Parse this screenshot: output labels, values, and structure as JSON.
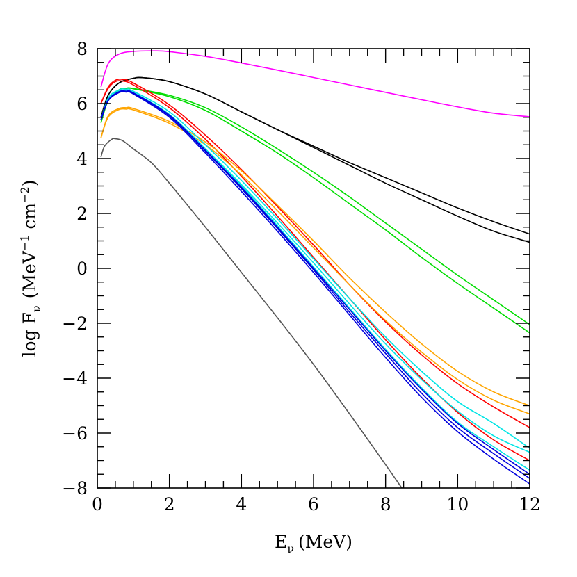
{
  "chart_data": {
    "type": "line",
    "xlabel": "E_ν (MeV)",
    "ylabel": "log F_ν (MeV⁻¹ cm⁻²)",
    "xlabel_parts": {
      "symbol": "E",
      "sub": "ν",
      "unit": "(MeV)"
    },
    "ylabel_parts": {
      "prefix": "log F",
      "sub": "ν",
      "unit_open": "(MeV",
      "sup1": "−1",
      "unit_mid": "cm",
      "sup2": "−2",
      "unit_close": ")"
    },
    "xlim": [
      0,
      12
    ],
    "ylim": [
      -8,
      8
    ],
    "x_ticks": [
      0,
      2,
      4,
      6,
      8,
      10,
      12
    ],
    "y_ticks": [
      8,
      6,
      4,
      2,
      0,
      -2,
      -4,
      -6,
      -8
    ],
    "x_tick_labels": [
      "0",
      "2",
      "4",
      "6",
      "8",
      "10",
      "12"
    ],
    "y_tick_labels": [
      "8",
      "6",
      "4",
      "2",
      "0",
      "−2",
      "−4",
      "−6",
      "−8"
    ],
    "grid": false,
    "legend": "none",
    "series": [
      {
        "color": "#ff00ff",
        "points": [
          [
            0.1,
            6.6
          ],
          [
            0.3,
            7.45
          ],
          [
            0.6,
            7.8
          ],
          [
            1.0,
            7.9
          ],
          [
            1.6,
            7.92
          ],
          [
            2,
            7.89
          ],
          [
            3,
            7.72
          ],
          [
            4,
            7.48
          ],
          [
            5,
            7.22
          ],
          [
            6,
            6.95
          ],
          [
            7,
            6.68
          ],
          [
            8,
            6.41
          ],
          [
            9,
            6.14
          ],
          [
            10,
            5.88
          ],
          [
            11,
            5.65
          ],
          [
            12,
            5.52
          ]
        ]
      },
      {
        "color": "#000000",
        "points": [
          [
            0.1,
            5.5
          ],
          [
            0.3,
            6.3
          ],
          [
            0.6,
            6.75
          ],
          [
            1.0,
            6.92
          ],
          [
            1.3,
            6.94
          ],
          [
            2,
            6.8
          ],
          [
            3,
            6.35
          ],
          [
            4,
            5.7
          ],
          [
            5,
            5.05
          ],
          [
            6,
            4.45
          ],
          [
            7,
            3.85
          ],
          [
            8,
            3.3
          ],
          [
            9,
            2.75
          ],
          [
            10,
            2.2
          ],
          [
            11,
            1.7
          ],
          [
            12,
            1.25
          ]
        ]
      },
      {
        "color": "#000000",
        "points": [
          [
            0.1,
            5.5
          ],
          [
            0.3,
            6.3
          ],
          [
            0.6,
            6.75
          ],
          [
            1.0,
            6.92
          ],
          [
            1.3,
            6.94
          ],
          [
            2,
            6.8
          ],
          [
            3,
            6.35
          ],
          [
            4,
            5.7
          ],
          [
            5,
            5.05
          ],
          [
            6,
            4.4
          ],
          [
            7,
            3.75
          ],
          [
            8,
            3.1
          ],
          [
            9,
            2.5
          ],
          [
            10,
            1.9
          ],
          [
            11,
            1.35
          ],
          [
            12,
            0.95
          ]
        ]
      },
      {
        "color": "#00dd00",
        "points": [
          [
            0.1,
            5.3
          ],
          [
            0.3,
            6.1
          ],
          [
            0.6,
            6.5
          ],
          [
            0.8,
            6.56
          ],
          [
            1,
            6.55
          ],
          [
            2,
            6.3
          ],
          [
            3,
            5.85
          ],
          [
            4,
            5.15
          ],
          [
            5,
            4.35
          ],
          [
            6,
            3.5
          ],
          [
            7,
            2.6
          ],
          [
            8,
            1.65
          ],
          [
            9,
            0.7
          ],
          [
            10,
            -0.25
          ],
          [
            11,
            -1.15
          ],
          [
            12,
            -2.05
          ]
        ]
      },
      {
        "color": "#00dd00",
        "points": [
          [
            0.1,
            5.3
          ],
          [
            0.3,
            6.1
          ],
          [
            0.6,
            6.5
          ],
          [
            0.8,
            6.55
          ],
          [
            1,
            6.54
          ],
          [
            2,
            6.25
          ],
          [
            3,
            5.75
          ],
          [
            4,
            5.0
          ],
          [
            5,
            4.2
          ],
          [
            6,
            3.3
          ],
          [
            7,
            2.35
          ],
          [
            8,
            1.4
          ],
          [
            9,
            0.4
          ],
          [
            10,
            -0.55
          ],
          [
            11,
            -1.45
          ],
          [
            12,
            -2.35
          ]
        ]
      },
      {
        "color": "#ff0000",
        "points": [
          [
            0.1,
            6.0
          ],
          [
            0.3,
            6.6
          ],
          [
            0.5,
            6.85
          ],
          [
            0.7,
            6.88
          ],
          [
            1,
            6.75
          ],
          [
            2,
            5.95
          ],
          [
            3,
            4.85
          ],
          [
            4,
            3.6
          ],
          [
            5,
            2.25
          ],
          [
            6,
            0.85
          ],
          [
            7,
            -0.6
          ],
          [
            8,
            -1.95
          ],
          [
            9,
            -3.15
          ],
          [
            10,
            -4.2
          ],
          [
            11,
            -5.05
          ],
          [
            12,
            -5.8
          ]
        ]
      },
      {
        "color": "#ff0000",
        "points": [
          [
            0.1,
            6.0
          ],
          [
            0.3,
            6.55
          ],
          [
            0.5,
            6.8
          ],
          [
            0.7,
            6.82
          ],
          [
            1,
            6.68
          ],
          [
            2,
            5.85
          ],
          [
            3,
            4.7
          ],
          [
            4,
            3.35
          ],
          [
            5,
            1.9
          ],
          [
            6,
            0.4
          ],
          [
            7,
            -1.1
          ],
          [
            8,
            -2.6
          ],
          [
            9,
            -4.0
          ],
          [
            10,
            -5.25
          ],
          [
            11,
            -6.25
          ],
          [
            12,
            -7.0
          ]
        ]
      },
      {
        "color": "#ffa500",
        "points": [
          [
            0.1,
            4.75
          ],
          [
            0.3,
            5.55
          ],
          [
            0.6,
            5.82
          ],
          [
            0.8,
            5.85
          ],
          [
            1,
            5.82
          ],
          [
            2,
            5.35
          ],
          [
            3,
            4.6
          ],
          [
            4,
            3.55
          ],
          [
            5,
            2.3
          ],
          [
            6,
            1.0
          ],
          [
            7,
            -0.35
          ],
          [
            8,
            -1.6
          ],
          [
            9,
            -2.75
          ],
          [
            10,
            -3.75
          ],
          [
            11,
            -4.5
          ],
          [
            12,
            -5.0
          ]
        ]
      },
      {
        "color": "#ffa500",
        "points": [
          [
            0.1,
            4.75
          ],
          [
            0.3,
            5.5
          ],
          [
            0.6,
            5.78
          ],
          [
            0.8,
            5.8
          ],
          [
            1,
            5.77
          ],
          [
            2,
            5.28
          ],
          [
            3,
            4.5
          ],
          [
            4,
            3.4
          ],
          [
            5,
            2.1
          ],
          [
            6,
            0.75
          ],
          [
            7,
            -0.6
          ],
          [
            8,
            -1.9
          ],
          [
            9,
            -3.05
          ],
          [
            10,
            -4.05
          ],
          [
            11,
            -4.8
          ],
          [
            12,
            -5.3
          ]
        ]
      },
      {
        "color": "#00e5e5",
        "points": [
          [
            0.1,
            5.4
          ],
          [
            0.3,
            6.2
          ],
          [
            0.6,
            6.5
          ],
          [
            0.8,
            6.52
          ],
          [
            1,
            6.45
          ],
          [
            2,
            5.7
          ],
          [
            3,
            4.5
          ],
          [
            4,
            3.2
          ],
          [
            5,
            1.8
          ],
          [
            6,
            0.35
          ],
          [
            7,
            -1.1
          ],
          [
            8,
            -2.5
          ],
          [
            9,
            -3.75
          ],
          [
            10,
            -4.85
          ],
          [
            11,
            -5.65
          ],
          [
            12,
            -6.55
          ]
        ]
      },
      {
        "color": "#00e5e5",
        "points": [
          [
            0.1,
            5.4
          ],
          [
            0.3,
            6.15
          ],
          [
            0.6,
            6.45
          ],
          [
            0.8,
            6.47
          ],
          [
            1,
            6.4
          ],
          [
            2,
            5.6
          ],
          [
            3,
            4.35
          ],
          [
            4,
            3.0
          ],
          [
            5,
            1.55
          ],
          [
            6,
            0.05
          ],
          [
            7,
            -1.45
          ],
          [
            8,
            -2.95
          ],
          [
            9,
            -4.35
          ],
          [
            10,
            -5.6
          ],
          [
            11,
            -6.5
          ],
          [
            12,
            -7.35
          ]
        ]
      },
      {
        "color": "#00e5e5",
        "points": [
          [
            0.1,
            5.4
          ],
          [
            0.3,
            6.15
          ],
          [
            0.6,
            6.45
          ],
          [
            0.8,
            6.47
          ],
          [
            1,
            6.4
          ],
          [
            2,
            5.6
          ],
          [
            3,
            4.35
          ],
          [
            4,
            3.05
          ],
          [
            5,
            1.65
          ],
          [
            6,
            0.2
          ],
          [
            7,
            -1.3
          ],
          [
            8,
            -2.75
          ],
          [
            9,
            -4.05
          ],
          [
            10,
            -5.2
          ],
          [
            11,
            -6.1
          ],
          [
            12,
            -6.7
          ]
        ]
      },
      {
        "color": "#0000dd",
        "points": [
          [
            0.1,
            5.4
          ],
          [
            0.3,
            6.1
          ],
          [
            0.6,
            6.4
          ],
          [
            0.8,
            6.42
          ],
          [
            1,
            6.35
          ],
          [
            2,
            5.5
          ],
          [
            3,
            4.2
          ],
          [
            4,
            2.8
          ],
          [
            5,
            1.35
          ],
          [
            6,
            -0.15
          ],
          [
            7,
            -1.7
          ],
          [
            8,
            -3.25
          ],
          [
            9,
            -4.7
          ],
          [
            10,
            -5.95
          ],
          [
            11,
            -6.95
          ],
          [
            12,
            -7.85
          ]
        ]
      },
      {
        "color": "#0000dd",
        "points": [
          [
            0.1,
            5.4
          ],
          [
            0.3,
            6.12
          ],
          [
            0.6,
            6.42
          ],
          [
            0.8,
            6.44
          ],
          [
            1,
            6.38
          ],
          [
            2,
            5.55
          ],
          [
            3,
            4.27
          ],
          [
            4,
            2.9
          ],
          [
            5,
            1.45
          ],
          [
            6,
            -0.05
          ],
          [
            7,
            -1.6
          ],
          [
            8,
            -3.1
          ],
          [
            9,
            -4.55
          ],
          [
            10,
            -5.8
          ],
          [
            11,
            -6.75
          ],
          [
            12,
            -7.65
          ]
        ]
      },
      {
        "color": "#0000dd",
        "points": [
          [
            0.1,
            5.4
          ],
          [
            0.3,
            6.12
          ],
          [
            0.6,
            6.43
          ],
          [
            0.8,
            6.45
          ],
          [
            1,
            6.39
          ],
          [
            2,
            5.58
          ],
          [
            3,
            4.3
          ],
          [
            4,
            2.95
          ],
          [
            5,
            1.5
          ],
          [
            6,
            0.0
          ],
          [
            7,
            -1.5
          ],
          [
            8,
            -3.0
          ],
          [
            9,
            -4.4
          ],
          [
            10,
            -5.65
          ],
          [
            11,
            -6.6
          ],
          [
            12,
            -7.5
          ]
        ]
      },
      {
        "color": "#555555",
        "points": [
          [
            0.1,
            4.05
          ],
          [
            0.2,
            4.45
          ],
          [
            0.4,
            4.7
          ],
          [
            0.5,
            4.72
          ],
          [
            0.7,
            4.65
          ],
          [
            1,
            4.35
          ],
          [
            1.5,
            3.85
          ],
          [
            2,
            3.1
          ],
          [
            3,
            1.5
          ],
          [
            4,
            -0.15
          ],
          [
            5,
            -1.8
          ],
          [
            6,
            -3.5
          ],
          [
            7,
            -5.3
          ],
          [
            8,
            -7.15
          ],
          [
            8.45,
            -8
          ]
        ]
      }
    ]
  }
}
